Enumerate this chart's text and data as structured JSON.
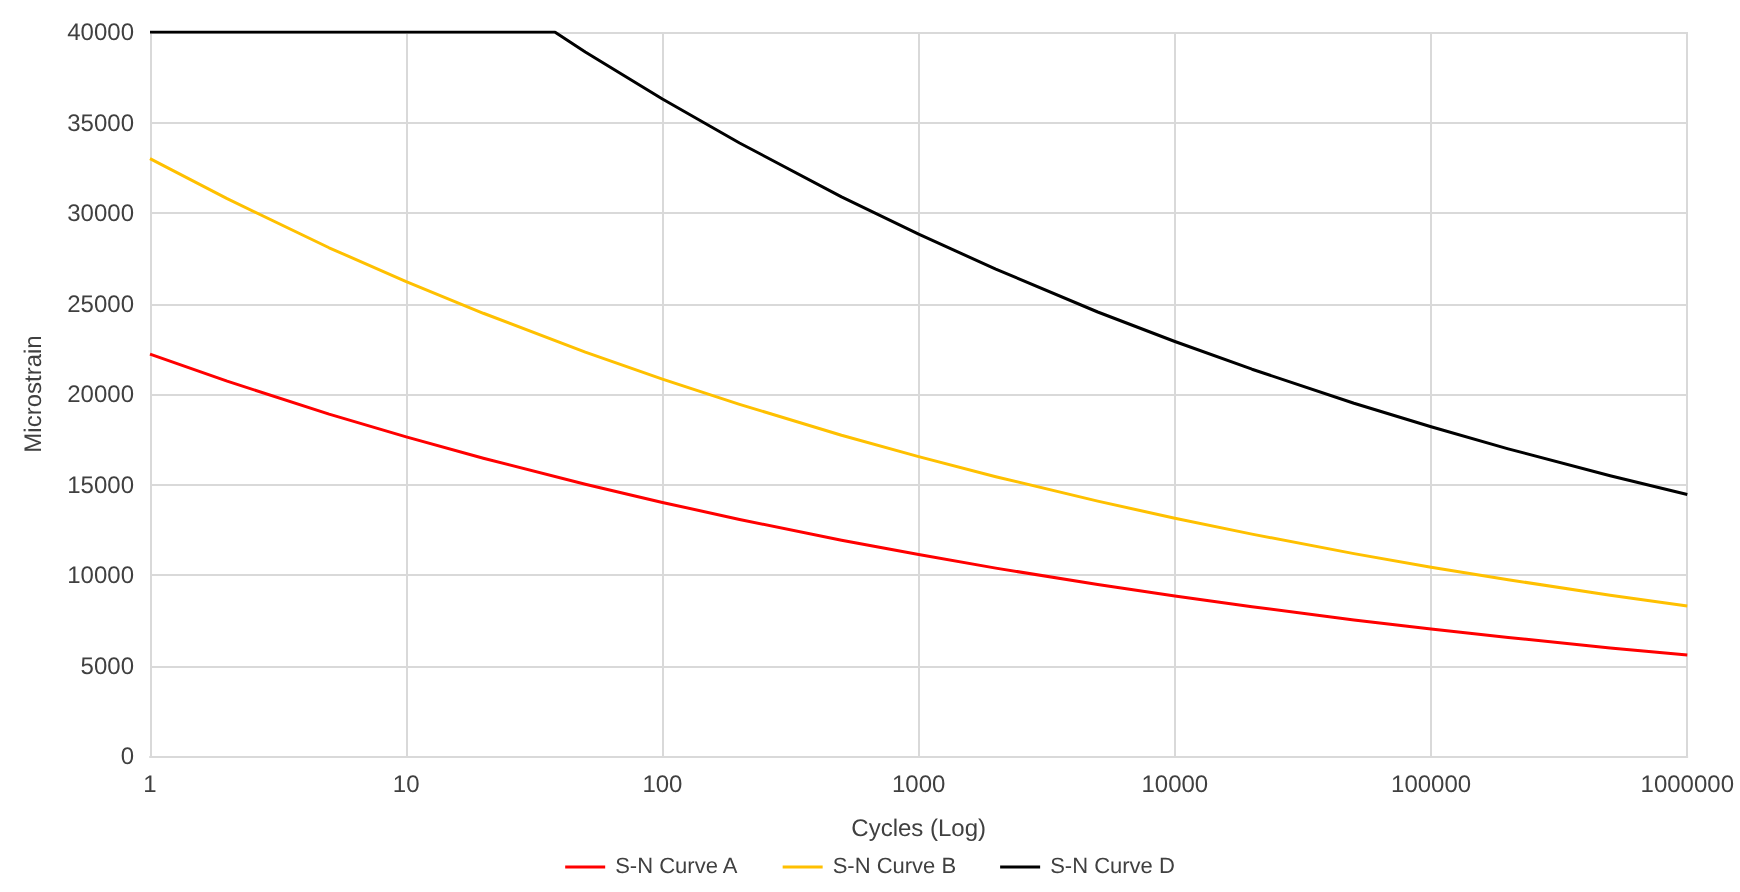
{
  "chart_data": {
    "type": "line",
    "xlabel": "Cycles (Log)",
    "ylabel": "Microstrain",
    "log": "x",
    "grid": true,
    "legend": "bottom",
    "marker": "none",
    "line_style": "solid",
    "xlim": [
      1,
      1000000
    ],
    "xticks": [
      1,
      10,
      100,
      1000,
      10000,
      100000,
      1000000
    ],
    "ylim": [
      0,
      40000
    ],
    "yticks": [
      0,
      5000,
      10000,
      15000,
      20000,
      25000,
      30000,
      35000,
      40000
    ],
    "series": [
      {
        "name": "S-N Curve A",
        "color": "#ff0000",
        "x": [
          1,
          2,
          5,
          10,
          20,
          50,
          100,
          200,
          500,
          1000,
          2000,
          5000,
          10000,
          20000,
          50000,
          100000,
          200000,
          500000,
          1000000
        ],
        "values": [
          22200,
          20710,
          18890,
          17630,
          16450,
          15010,
          14010,
          13070,
          11920,
          11130,
          10380,
          9470,
          8840,
          8250,
          7520,
          7020,
          6550,
          5970,
          5580
        ]
      },
      {
        "name": "S-N Curve B",
        "color": "#ffc000",
        "x": [
          1,
          2,
          5,
          10,
          20,
          50,
          100,
          200,
          500,
          1000,
          2000,
          5000,
          10000,
          20000,
          50000,
          100000,
          200000,
          500000,
          1000000
        ],
        "values": [
          33000,
          30790,
          28080,
          26210,
          24460,
          22310,
          20820,
          19430,
          17720,
          16540,
          15430,
          14080,
          13140,
          12260,
          11180,
          10430,
          9740,
          8880,
          8290
        ]
      },
      {
        "name": "S-N Curve D",
        "color": "#000000",
        "x": [
          1,
          38,
          50,
          100,
          200,
          500,
          1000,
          2000,
          5000,
          10000,
          20000,
          50000,
          100000,
          200000,
          500000,
          1000000
        ],
        "values": [
          40000,
          40000,
          38900,
          36300,
          33870,
          30890,
          28830,
          26900,
          24530,
          22900,
          21370,
          19490,
          18190,
          16970,
          15480,
          14450
        ]
      }
    ]
  }
}
